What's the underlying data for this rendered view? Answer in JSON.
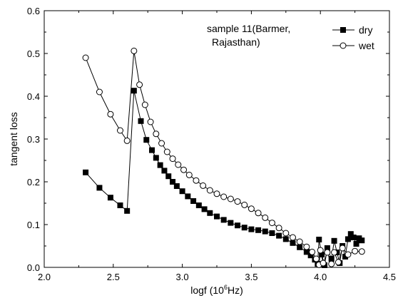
{
  "chart_data": {
    "type": "scatter",
    "annotation": [
      "sample 11(Barmer,",
      "Rajasthan)"
    ],
    "xlabel": "logf (10",
    "xlabel_sup": "6",
    "xlabel_tail": "Hz)",
    "ylabel": "tangent loss",
    "xlim": [
      2.0,
      4.5
    ],
    "ylim": [
      0.0,
      0.6
    ],
    "xticks": [
      2.0,
      2.5,
      3.0,
      3.5,
      4.0,
      4.5
    ],
    "xtick_labels": [
      "2.0",
      "2.5",
      "3.0",
      "3.5",
      "4.0",
      "4.5"
    ],
    "yticks": [
      0.0,
      0.1,
      0.2,
      0.3,
      0.4,
      0.5,
      0.6
    ],
    "ytick_labels": [
      "0.0",
      "0.1",
      "0.2",
      "0.3",
      "0.4",
      "0.5",
      "0.6"
    ],
    "grid": false,
    "legend_position": "top-right",
    "series": [
      {
        "name": "dry",
        "marker": "filled-square",
        "color": "#000000",
        "points": [
          [
            2.3,
            0.222
          ],
          [
            2.4,
            0.186
          ],
          [
            2.48,
            0.163
          ],
          [
            2.55,
            0.145
          ],
          [
            2.6,
            0.132
          ],
          [
            2.65,
            0.413
          ],
          [
            2.7,
            0.342
          ],
          [
            2.74,
            0.298
          ],
          [
            2.78,
            0.274
          ],
          [
            2.81,
            0.256
          ],
          [
            2.84,
            0.239
          ],
          [
            2.87,
            0.226
          ],
          [
            2.9,
            0.213
          ],
          [
            2.93,
            0.2
          ],
          [
            2.96,
            0.19
          ],
          [
            3.0,
            0.178
          ],
          [
            3.04,
            0.166
          ],
          [
            3.08,
            0.155
          ],
          [
            3.12,
            0.145
          ],
          [
            3.16,
            0.136
          ],
          [
            3.2,
            0.127
          ],
          [
            3.25,
            0.119
          ],
          [
            3.3,
            0.111
          ],
          [
            3.35,
            0.104
          ],
          [
            3.4,
            0.098
          ],
          [
            3.45,
            0.093
          ],
          [
            3.5,
            0.089
          ],
          [
            3.55,
            0.087
          ],
          [
            3.6,
            0.084
          ],
          [
            3.65,
            0.08
          ],
          [
            3.7,
            0.074
          ],
          [
            3.75,
            0.066
          ],
          [
            3.8,
            0.057
          ],
          [
            3.85,
            0.047
          ],
          [
            3.9,
            0.036
          ],
          [
            3.93,
            0.028
          ],
          [
            3.96,
            0.018
          ],
          [
            3.98,
            0.008
          ],
          [
            3.99,
            0.065
          ],
          [
            4.01,
            0.03
          ],
          [
            4.03,
            0.005
          ],
          [
            4.05,
            0.045
          ],
          [
            4.08,
            0.02
          ],
          [
            4.1,
            0.062
          ],
          [
            4.12,
            0.035
          ],
          [
            4.14,
            0.01
          ],
          [
            4.16,
            0.05
          ],
          [
            4.18,
            0.025
          ],
          [
            4.2,
            0.066
          ],
          [
            4.22,
            0.078
          ],
          [
            4.24,
            0.07
          ],
          [
            4.26,
            0.055
          ],
          [
            4.28,
            0.068
          ],
          [
            4.3,
            0.063
          ]
        ]
      },
      {
        "name": "wet",
        "marker": "open-circle",
        "color": "#000000",
        "points": [
          [
            2.3,
            0.49
          ],
          [
            2.4,
            0.41
          ],
          [
            2.48,
            0.358
          ],
          [
            2.55,
            0.32
          ],
          [
            2.6,
            0.296
          ],
          [
            2.65,
            0.506
          ],
          [
            2.69,
            0.427
          ],
          [
            2.73,
            0.38
          ],
          [
            2.77,
            0.34
          ],
          [
            2.81,
            0.312
          ],
          [
            2.85,
            0.29
          ],
          [
            2.89,
            0.27
          ],
          [
            2.93,
            0.254
          ],
          [
            2.97,
            0.24
          ],
          [
            3.01,
            0.228
          ],
          [
            3.05,
            0.216
          ],
          [
            3.1,
            0.203
          ],
          [
            3.15,
            0.191
          ],
          [
            3.2,
            0.18
          ],
          [
            3.25,
            0.172
          ],
          [
            3.3,
            0.165
          ],
          [
            3.35,
            0.16
          ],
          [
            3.4,
            0.154
          ],
          [
            3.45,
            0.146
          ],
          [
            3.5,
            0.137
          ],
          [
            3.55,
            0.127
          ],
          [
            3.6,
            0.116
          ],
          [
            3.65,
            0.104
          ],
          [
            3.7,
            0.092
          ],
          [
            3.75,
            0.08
          ],
          [
            3.8,
            0.07
          ],
          [
            3.85,
            0.06
          ],
          [
            3.9,
            0.048
          ],
          [
            3.94,
            0.036
          ],
          [
            3.97,
            0.02
          ],
          [
            3.99,
            0.006
          ],
          [
            4.0,
            0.04
          ],
          [
            4.02,
            0.01
          ],
          [
            4.05,
            0.035
          ],
          [
            4.08,
            0.008
          ],
          [
            4.1,
            0.035
          ],
          [
            4.13,
            0.012
          ],
          [
            4.16,
            0.045
          ],
          [
            4.2,
            0.03
          ],
          [
            4.25,
            0.038
          ],
          [
            4.3,
            0.037
          ]
        ]
      }
    ]
  }
}
